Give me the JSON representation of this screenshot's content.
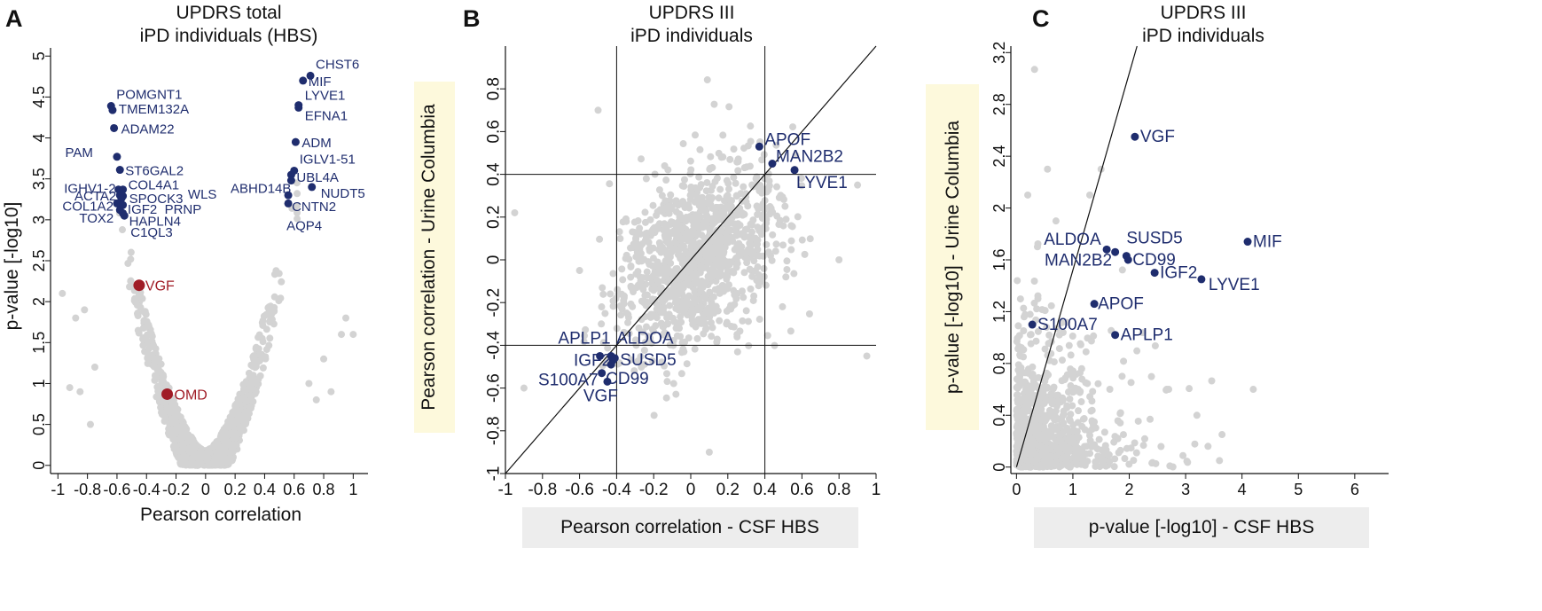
{
  "chart_data": [
    {
      "panel": "A",
      "type": "scatter",
      "title": "UPDRS total",
      "subtitle": "iPD individuals (HBS)",
      "xlabel": "Pearson correlation",
      "ylabel": "p-value [-log10]",
      "xlim": [
        -1.05,
        1.1
      ],
      "ylim": [
        -0.1,
        5.1
      ],
      "xticks": [
        -1,
        -0.8,
        -0.6,
        -0.4,
        -0.2,
        0,
        0.2,
        0.4,
        0.6,
        0.8,
        1
      ],
      "xtick_labels": [
        "-1",
        "-0.8",
        "-0.6",
        "-0.4",
        "-0.2",
        "0",
        "0.2",
        "0.4",
        "0.6",
        "0.8",
        "1"
      ],
      "yticks": [
        0,
        0.5,
        1,
        1.5,
        2,
        2.5,
        3,
        3.5,
        4,
        4.5,
        5
      ],
      "ytick_labels": [
        "0",
        "0.5",
        "1",
        "1.5",
        "2",
        "2.5",
        "3",
        "3.5",
        "4",
        "4.5",
        "5"
      ],
      "colors": {
        "background": "#d3d3d3",
        "highlight": "#1f2d6e",
        "special": "#a01c26"
      },
      "highlighted": [
        {
          "label": "CHST6",
          "x": 0.71,
          "y": 4.76
        },
        {
          "label": "MIF",
          "x": 0.66,
          "y": 4.7
        },
        {
          "label": "LYVE1",
          "x": 0.63,
          "y": 4.4
        },
        {
          "label": "EFNA1",
          "x": 0.63,
          "y": 4.37
        },
        {
          "label": "ADM",
          "x": 0.61,
          "y": 3.95
        },
        {
          "label": "IGLV1-51",
          "x": 0.6,
          "y": 3.6
        },
        {
          "label": "UBL4A",
          "x": 0.58,
          "y": 3.55
        },
        {
          "label": "ABHD14B",
          "x": 0.58,
          "y": 3.48
        },
        {
          "label": "NUDT5",
          "x": 0.72,
          "y": 3.4
        },
        {
          "label": "CNTN2",
          "x": 0.56,
          "y": 3.3
        },
        {
          "label": "AQP4",
          "x": 0.56,
          "y": 3.2
        },
        {
          "label": "POMGNT1",
          "x": -0.64,
          "y": 4.39
        },
        {
          "label": "TMEM132A",
          "x": -0.63,
          "y": 4.34
        },
        {
          "label": "ADAM22",
          "x": -0.62,
          "y": 4.12
        },
        {
          "label": "PAM",
          "x": -0.6,
          "y": 3.77
        },
        {
          "label": "ST6GAL2",
          "x": -0.58,
          "y": 3.61
        },
        {
          "label": "IGHV1-2",
          "x": -0.59,
          "y": 3.37
        },
        {
          "label": "COL4A1",
          "x": -0.56,
          "y": 3.37
        },
        {
          "label": "ACTA2",
          "x": -0.58,
          "y": 3.3
        },
        {
          "label": "SPOCK3",
          "x": -0.56,
          "y": 3.29
        },
        {
          "label": "WLS",
          "x": -0.57,
          "y": 3.26
        },
        {
          "label": "COL1A2",
          "x": -0.6,
          "y": 3.2
        },
        {
          "label": "IGF2",
          "x": -0.57,
          "y": 3.18
        },
        {
          "label": "PRNP",
          "x": -0.56,
          "y": 3.18
        },
        {
          "label": "TOX2",
          "x": -0.58,
          "y": 3.12
        },
        {
          "label": "HAPLN4",
          "x": -0.56,
          "y": 3.08
        },
        {
          "label": "C1QL3",
          "x": -0.55,
          "y": 3.05
        }
      ],
      "special": [
        {
          "label": "VGF",
          "x": -0.45,
          "y": 2.2
        },
        {
          "label": "OMD",
          "x": -0.26,
          "y": 0.87
        }
      ]
    },
    {
      "panel": "B",
      "type": "scatter",
      "title": "UPDRS III",
      "subtitle": "iPD individuals",
      "xlabel": "Pearson correlation - CSF HBS",
      "ylabel": "Pearson correlation - Urine Columbia",
      "xlim": [
        -1,
        1
      ],
      "ylim": [
        -1,
        1
      ],
      "xticks": [
        -1,
        -0.8,
        -0.6,
        -0.4,
        -0.2,
        0,
        0.2,
        0.4,
        0.6,
        0.8,
        1
      ],
      "xtick_labels": [
        "-1",
        "-0.8",
        "-0.6",
        "-0.4",
        "-0.2",
        "0",
        "0.2",
        "0.4",
        "0.6",
        "0.8",
        "1"
      ],
      "yticks": [
        -1,
        -0.8,
        -0.6,
        -0.4,
        -0.2,
        0,
        0.2,
        0.4,
        0.6,
        0.8
      ],
      "ytick_labels": [
        "-1",
        "-0.8",
        "-0.6",
        "-0.4",
        "-0.2",
        "0",
        "0.2",
        "0.4",
        "0.6",
        "0.8"
      ],
      "reference_lines": {
        "vertical": [
          -0.4,
          0.4
        ],
        "horizontal": [
          -0.4,
          0.4
        ],
        "diagonal": "y=x"
      },
      "colors": {
        "background": "#d3d3d3",
        "highlight": "#1f2d6e",
        "axis_label_x_bg": "#ededed",
        "axis_label_y_bg": "#fdf9dc"
      },
      "highlighted": [
        {
          "label": "APOF",
          "x": 0.37,
          "y": 0.53
        },
        {
          "label": "MAN2B2",
          "x": 0.44,
          "y": 0.45
        },
        {
          "label": "LYVE1",
          "x": 0.56,
          "y": 0.42
        },
        {
          "label": "APLP1",
          "x": -0.49,
          "y": -0.45
        },
        {
          "label": "ALDOA",
          "x": -0.43,
          "y": -0.45
        },
        {
          "label": "IGF2",
          "x": -0.42,
          "y": -0.47
        },
        {
          "label": "SUSD5",
          "x": -0.41,
          "y": -0.46
        },
        {
          "label": "S100A7",
          "x": -0.48,
          "y": -0.53
        },
        {
          "label": "CD99",
          "x": -0.43,
          "y": -0.49
        },
        {
          "label": "VGF",
          "x": -0.45,
          "y": -0.57
        }
      ]
    },
    {
      "panel": "C",
      "type": "scatter",
      "title": "UPDRS III",
      "subtitle": "iPD individuals",
      "xlabel": "p-value [-log10] - CSF HBS",
      "ylabel": "p-value [-log10] - Urine Columbia",
      "xlim": [
        -0.1,
        6.6
      ],
      "ylim": [
        -0.05,
        3.25
      ],
      "xticks": [
        0,
        1,
        2,
        3,
        4,
        5,
        6
      ],
      "xtick_labels": [
        "0",
        "1",
        "2",
        "3",
        "4",
        "5",
        "6"
      ],
      "yticks": [
        0,
        0.4,
        0.8,
        1.2,
        1.6,
        2,
        2.4,
        2.8,
        3.2
      ],
      "ytick_labels": [
        "0",
        "0.4",
        "0.8",
        "1.2",
        "1.6",
        "2",
        "2.4",
        "2.8",
        "3.2"
      ],
      "reference_lines": {
        "diagonal_slope": 1.52
      },
      "colors": {
        "background": "#d3d3d3",
        "highlight": "#1f2d6e",
        "axis_label_x_bg": "#ededed",
        "axis_label_y_bg": "#fdf9dc"
      },
      "highlighted": [
        {
          "label": "VGF",
          "x": 2.1,
          "y": 2.55
        },
        {
          "label": "MIF",
          "x": 4.1,
          "y": 1.74
        },
        {
          "label": "ALDOA",
          "x": 1.75,
          "y": 1.66
        },
        {
          "label": "SUSD5",
          "x": 1.95,
          "y": 1.63
        },
        {
          "label": "CD99",
          "x": 1.98,
          "y": 1.6
        },
        {
          "label": "MAN2B2",
          "x": 1.6,
          "y": 1.68
        },
        {
          "label": "IGF2",
          "x": 2.45,
          "y": 1.5
        },
        {
          "label": "LYVE1",
          "x": 3.28,
          "y": 1.45
        },
        {
          "label": "APOF",
          "x": 1.38,
          "y": 1.26
        },
        {
          "label": "S100A7",
          "x": 0.28,
          "y": 1.1
        },
        {
          "label": "APLP1",
          "x": 1.75,
          "y": 1.02
        }
      ]
    }
  ],
  "panel_letters": [
    "A",
    "B",
    "C"
  ]
}
